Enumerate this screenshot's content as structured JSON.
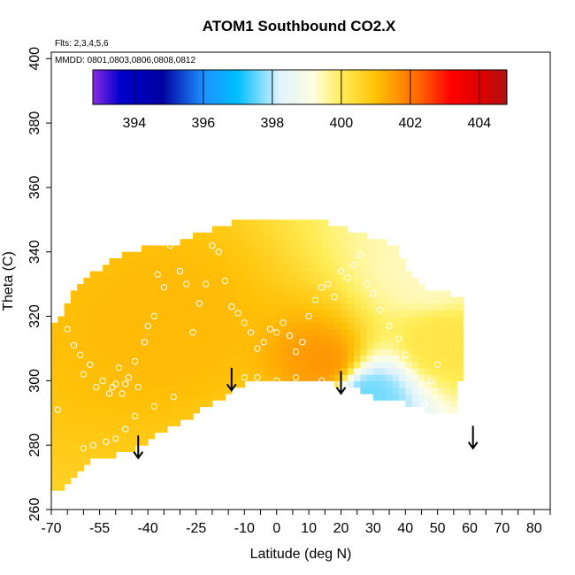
{
  "chart_data": {
    "type": "heatmap",
    "title": "ATOM1 Southbound CO2.X",
    "subtitle_flights": "Flts: 2,3,4,5,6",
    "subtitle_dates": "MMDD: 0801,0803,0806,0808,0812",
    "xlabel": "Latitude (deg N)",
    "ylabel": "Theta (C)",
    "xlim": [
      -70,
      85
    ],
    "ylim": [
      260,
      402
    ],
    "x_tick_labels": [
      "-70",
      "-55",
      "-40",
      "-25",
      "-10",
      "0",
      "10",
      "20",
      "30",
      "40",
      "50",
      "60",
      "70",
      "80"
    ],
    "x_tick_values": [
      -70,
      -55,
      -40,
      -25,
      -10,
      0,
      10,
      20,
      30,
      40,
      50,
      60,
      70,
      80
    ],
    "x_minor_ticks": [
      -65,
      -60,
      -50,
      -45,
      -35,
      -30,
      -20,
      -15,
      -5,
      5,
      15,
      25,
      35,
      45,
      55,
      65,
      75,
      85
    ],
    "y_ticks": [
      260,
      280,
      300,
      320,
      340,
      360,
      380,
      400
    ],
    "colorbar": {
      "range": [
        392.8,
        404.8
      ],
      "tick_values": [
        394,
        396,
        398,
        400,
        402,
        404
      ],
      "tick_labels": [
        "394",
        "396",
        "398",
        "400",
        "402",
        "404"
      ],
      "stops": [
        {
          "v": 392.8,
          "c": "#8a2be2"
        },
        {
          "v": 393.6,
          "c": "#0000cd"
        },
        {
          "v": 394.8,
          "c": "#0000a0"
        },
        {
          "v": 396.0,
          "c": "#1e90ff"
        },
        {
          "v": 397.0,
          "c": "#00bfff"
        },
        {
          "v": 398.2,
          "c": "#dff3ff"
        },
        {
          "v": 399.2,
          "c": "#fffde0"
        },
        {
          "v": 400.0,
          "c": "#ffee58"
        },
        {
          "v": 401.0,
          "c": "#ffc107"
        },
        {
          "v": 402.2,
          "c": "#ff6a00"
        },
        {
          "v": 403.2,
          "c": "#ff0000"
        },
        {
          "v": 404.0,
          "c": "#e00000"
        },
        {
          "v": 404.8,
          "c": "#b01010"
        }
      ]
    },
    "field_boundary": [
      [
        -69,
        267
      ],
      [
        -69,
        318
      ],
      [
        -67,
        320
      ],
      [
        -64,
        326
      ],
      [
        -60,
        330
      ],
      [
        -56,
        334
      ],
      [
        -52,
        337
      ],
      [
        -48,
        339
      ],
      [
        -42,
        341
      ],
      [
        -36,
        343
      ],
      [
        -30,
        343
      ],
      [
        -26,
        345
      ],
      [
        -20,
        347
      ],
      [
        -14,
        349
      ],
      [
        -8,
        350
      ],
      [
        0,
        351
      ],
      [
        8,
        350
      ],
      [
        16,
        349
      ],
      [
        22,
        347
      ],
      [
        28,
        345
      ],
      [
        34,
        343
      ],
      [
        38,
        342
      ],
      [
        40,
        336
      ],
      [
        46,
        329
      ],
      [
        54,
        327
      ],
      [
        58,
        326
      ],
      [
        59,
        318
      ],
      [
        59,
        301
      ],
      [
        57,
        301
      ],
      [
        57,
        290
      ],
      [
        46,
        291
      ],
      [
        40,
        293
      ],
      [
        32,
        294
      ],
      [
        24,
        298
      ],
      [
        18,
        299
      ],
      [
        10,
        300
      ],
      [
        0,
        300
      ],
      [
        -4,
        301
      ],
      [
        -8,
        300
      ],
      [
        -12,
        298
      ],
      [
        -20,
        293
      ],
      [
        -28,
        288
      ],
      [
        -36,
        284
      ],
      [
        -44,
        279
      ],
      [
        -50,
        277
      ],
      [
        -56,
        276
      ],
      [
        -60,
        273
      ],
      [
        -64,
        268
      ],
      [
        -66,
        267
      ],
      [
        -69,
        267
      ]
    ],
    "field_sources": [
      {
        "lat": -30,
        "theta": 316,
        "value": 401.1
      },
      {
        "lat": 15,
        "theta": 305,
        "value": 401.6
      },
      {
        "lat": 48,
        "theta": 332,
        "value": 399.4
      },
      {
        "lat": 52,
        "theta": 312,
        "value": 400.2
      },
      {
        "lat": 28,
        "theta": 296,
        "value": 397.6
      }
    ],
    "samples": [
      [
        -68,
        291
      ],
      [
        -65,
        316
      ],
      [
        -63,
        311
      ],
      [
        -61,
        308
      ],
      [
        -60,
        302
      ],
      [
        -58,
        305
      ],
      [
        -56,
        298
      ],
      [
        -54,
        300
      ],
      [
        -52,
        296
      ],
      [
        -51,
        298
      ],
      [
        -50,
        299
      ],
      [
        -49,
        304
      ],
      [
        -48,
        296
      ],
      [
        -47,
        299
      ],
      [
        -46,
        301
      ],
      [
        -44,
        306
      ],
      [
        -43,
        298
      ],
      [
        -41,
        312
      ],
      [
        -40,
        317
      ],
      [
        -38,
        320
      ],
      [
        -37,
        333
      ],
      [
        -35,
        329
      ],
      [
        -33,
        342
      ],
      [
        -30,
        334
      ],
      [
        -28,
        330
      ],
      [
        -26,
        315
      ],
      [
        -24,
        324
      ],
      [
        -22,
        330
      ],
      [
        -20,
        342
      ],
      [
        -18,
        340
      ],
      [
        -16,
        331
      ],
      [
        -14,
        323
      ],
      [
        -12,
        321
      ],
      [
        -10,
        318
      ],
      [
        -8,
        315
      ],
      [
        -6,
        310
      ],
      [
        -4,
        312
      ],
      [
        -2,
        316
      ],
      [
        0,
        315
      ],
      [
        2,
        318
      ],
      [
        4,
        314
      ],
      [
        6,
        309
      ],
      [
        8,
        312
      ],
      [
        10,
        320
      ],
      [
        12,
        325
      ],
      [
        14,
        329
      ],
      [
        16,
        330
      ],
      [
        18,
        326
      ],
      [
        20,
        334
      ],
      [
        22,
        332
      ],
      [
        24,
        336
      ],
      [
        26,
        339
      ],
      [
        28,
        330
      ],
      [
        30,
        327
      ],
      [
        32,
        322
      ],
      [
        35,
        317
      ],
      [
        38,
        313
      ],
      [
        40,
        308
      ],
      [
        42,
        302
      ],
      [
        44,
        297
      ],
      [
        46,
        293
      ],
      [
        -60,
        279
      ],
      [
        -57,
        280
      ],
      [
        -53,
        281
      ],
      [
        -50,
        282
      ],
      [
        -47,
        285
      ],
      [
        -44,
        289
      ],
      [
        -38,
        292
      ],
      [
        -32,
        295
      ],
      [
        -10,
        301
      ],
      [
        -6,
        301
      ],
      [
        0,
        300
      ],
      [
        6,
        301
      ],
      [
        14,
        300
      ],
      [
        20,
        299
      ],
      [
        48,
        300
      ],
      [
        50,
        305
      ]
    ],
    "arrows": [
      {
        "lat": -43,
        "theta_top": 283,
        "theta_bottom": 276
      },
      {
        "lat": -14,
        "theta_top": 304,
        "theta_bottom": 297
      },
      {
        "lat": 20,
        "theta_top": 303,
        "theta_bottom": 296
      },
      {
        "lat": 61,
        "theta_top": 286,
        "theta_bottom": 279
      }
    ]
  }
}
